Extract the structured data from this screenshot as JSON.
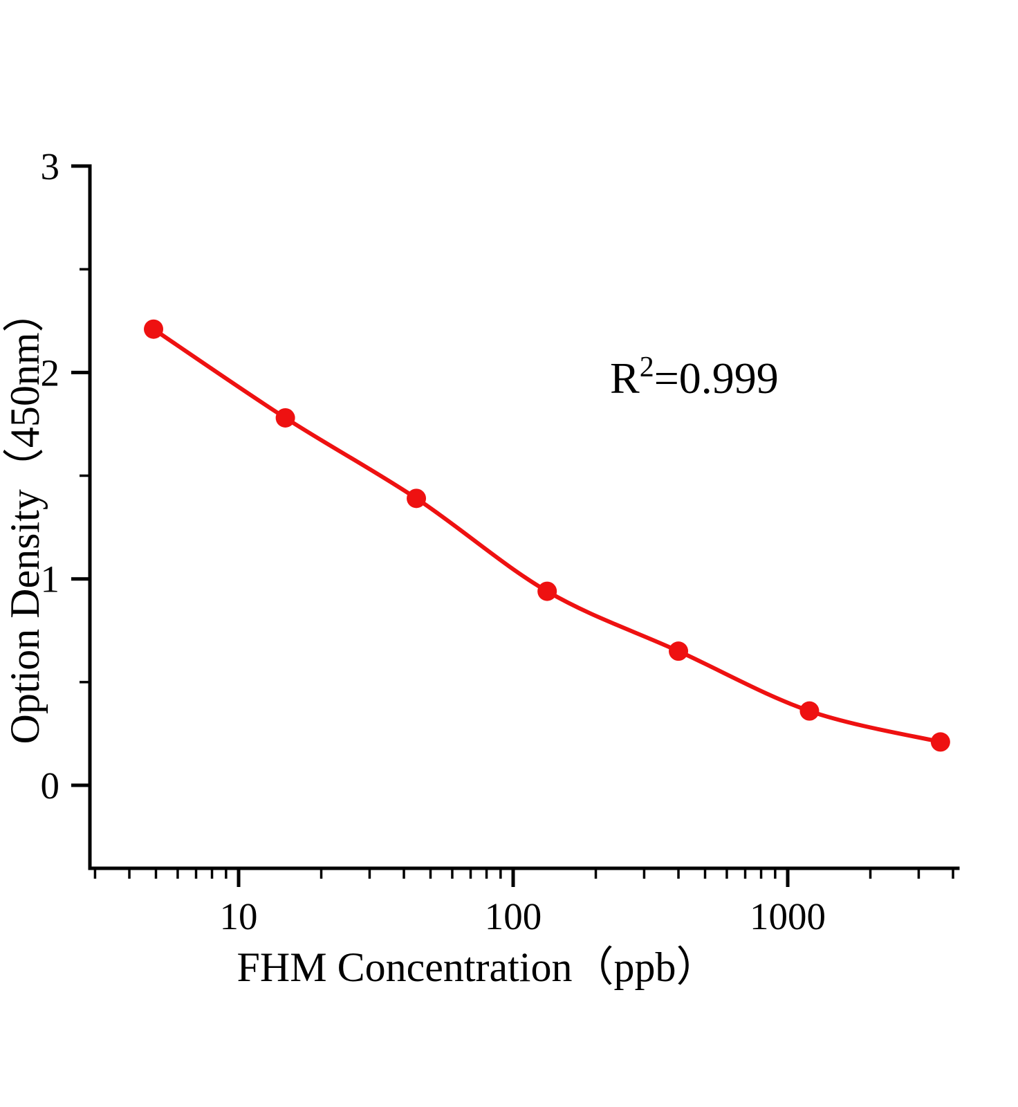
{
  "chart_data": {
    "type": "scatter",
    "title": "",
    "xlabel": "FHM  Concentration（ppb）",
    "ylabel": "Option Density（450nm）",
    "annotation": {
      "base": "R",
      "sup": "2",
      "rest": "=0.999"
    },
    "x_scale": "log",
    "x": [
      4.9,
      14.8,
      44.4,
      133,
      400,
      1200,
      3600
    ],
    "y": [
      2.21,
      1.78,
      1.39,
      0.94,
      0.65,
      0.36,
      0.21
    ],
    "x_major_ticks": [
      10,
      100,
      1000
    ],
    "x_major_tick_labels": [
      "10",
      "100",
      "1000"
    ],
    "y_major_ticks": [
      0,
      1,
      2,
      3
    ],
    "y_major_tick_labels": [
      "0",
      "1",
      "2",
      "3"
    ],
    "y_minor_step": 0.5,
    "xlim_log": [
      0.4584,
      3.6196
    ],
    "ylim": [
      -0.402,
      3
    ],
    "grid": false,
    "legend": null,
    "line_color": "#ee1111",
    "point_color": "#ee1111",
    "axis_color": "#000000"
  }
}
